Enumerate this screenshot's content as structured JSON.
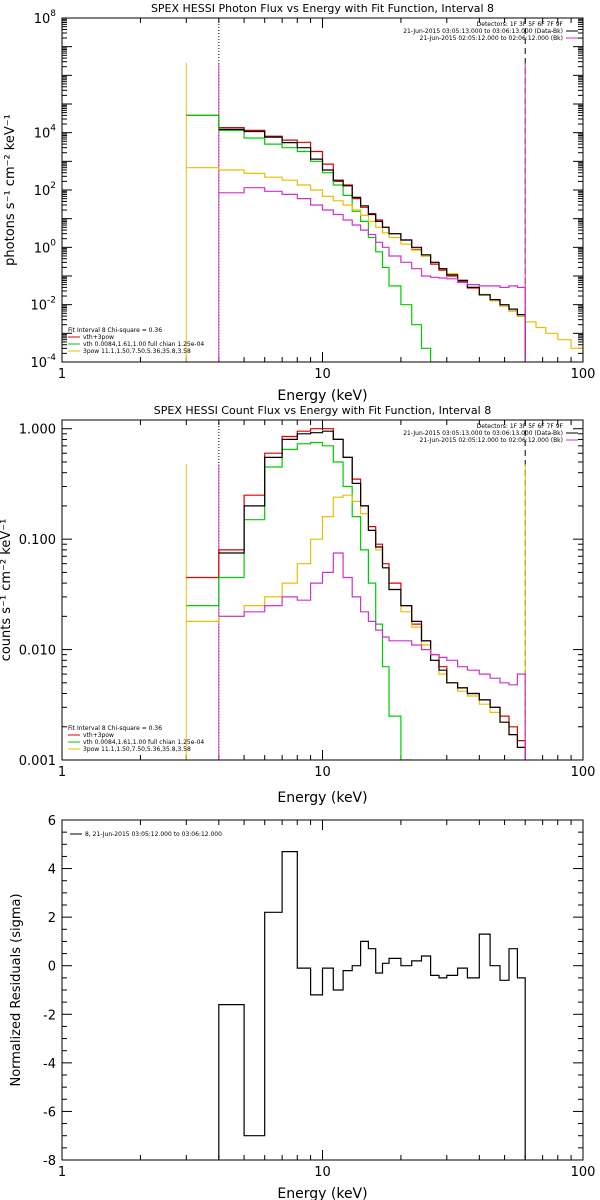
{
  "chart_data": [
    {
      "type": "line",
      "step": true,
      "title": "SPEX HESSI Photon Flux vs Energy with Fit Function, Interval 8",
      "xlabel": "Energy (keV)",
      "ylabel": "photons s⁻¹ cm⁻² keV⁻¹",
      "xscale": "log",
      "yscale": "log",
      "xlim": [
        1,
        100
      ],
      "ylim": [
        0.0001,
        100000000
      ],
      "xticks": [
        {
          "v": 1,
          "label": "1"
        },
        {
          "v": 10,
          "label": "10"
        },
        {
          "v": 100,
          "label": "100"
        }
      ],
      "yticks": [
        {
          "v": 0.0001,
          "base": "10",
          "exp": "-4"
        },
        {
          "v": 0.01,
          "base": "10",
          "exp": "-2"
        },
        {
          "v": 1,
          "base": "10",
          "exp": "0"
        },
        {
          "v": 100,
          "base": "10",
          "exp": "2"
        },
        {
          "v": 10000,
          "base": "10",
          "exp": "4"
        },
        {
          "v": 100000000,
          "base": "10",
          "exp": "8"
        }
      ],
      "yminor": true,
      "vlines": [
        {
          "x": 4.0,
          "style": "dotted",
          "color": "#000000"
        },
        {
          "x": 60.0,
          "style": "dashed",
          "color": "#000000"
        }
      ],
      "top_legend": [
        {
          "text": "Detectors: 1F 3F 5F 6F 7F 9F",
          "color": "",
          "swatch": false
        },
        {
          "text": "21-Jun-2015 03:05:13.000 to 03:06:13.000 (Data-Bk)",
          "color": "#000000",
          "swatch": true
        },
        {
          "text": "21-Jun-2015 02:05:12.000 to 02:06:12.000 (Bk)",
          "color": "#cc33cc",
          "swatch": true
        }
      ],
      "fit_legend": [
        {
          "text": "Fit Interval 8   Chi-square = 0.36",
          "color": "",
          "swatch": false
        },
        {
          "text": "vth+3pow",
          "color": "#dd0000",
          "swatch": true
        },
        {
          "text": "vth 0.0084,1.61,1.00  full chian 1.25e-04",
          "color": "#00cc00",
          "swatch": true
        },
        {
          "text": "3pow 11.1,1.50,7.50,5.36,35.8,3.58",
          "color": "#e8c000",
          "swatch": true
        }
      ],
      "edges": [
        3.0,
        4.0,
        5.0,
        6.0,
        7.0,
        8.0,
        9.0,
        10.0,
        11.0,
        12.0,
        13.0,
        14.0,
        15.0,
        16.0,
        17.0,
        18.0,
        20.0,
        22.0,
        24.0,
        26.0,
        28.0,
        30.0,
        33.0,
        36.0,
        40.0,
        44.0,
        48.0,
        52.0,
        56.0,
        60.0,
        66.0,
        72.0,
        80.0,
        90.0,
        100.0
      ],
      "series": [
        {
          "name": "vth+3pow",
          "color": "#dd0000",
          "values": [
            40000,
            15000,
            12000,
            7500,
            5500,
            4600,
            2200,
            800,
            200,
            150,
            50,
            25,
            15,
            9,
            5,
            3,
            1.8,
            0.85,
            0.5,
            0.26,
            0.16,
            0.1,
            0.065,
            0.038,
            0.022,
            0.014,
            0.009,
            0.006,
            0.004,
            null,
            null,
            null,
            null,
            null
          ]
        },
        {
          "name": "vth 0.0084,1.61,1.00  full chian 1.25e-04",
          "color": "#00cc00",
          "values": [
            40000,
            12000,
            6500,
            4000,
            3000,
            2200,
            1000,
            400,
            150,
            65,
            18,
            8,
            2.2,
            0.7,
            0.2,
            0.045,
            0.01,
            0.002,
            0.0003,
            0.0001,
            null,
            null,
            null,
            null,
            null,
            null,
            null,
            null,
            null,
            null,
            null,
            null,
            null,
            null
          ]
        },
        {
          "name": "3pow 11.1,1.50,7.50,5.36,35.8,3.58",
          "color": "#e8c000",
          "values": [
            600,
            500,
            380,
            280,
            220,
            150,
            100,
            60,
            42,
            30,
            20,
            13,
            8,
            5,
            3.2,
            2.2,
            1.3,
            0.8,
            0.5,
            0.3,
            0.18,
            0.12,
            0.07,
            0.04,
            0.023,
            0.014,
            0.009,
            0.006,
            0.004,
            0.0025,
            0.0016,
            0.001,
            0.0006,
            0.0003
          ]
        },
        {
          "name": "Data-Bk",
          "color": "#000000",
          "values": [
            null,
            13000,
            11000,
            7000,
            4500,
            3000,
            1200,
            500,
            220,
            140,
            55,
            28,
            14,
            8,
            5,
            3,
            1.8,
            1.0,
            0.55,
            0.3,
            0.18,
            0.11,
            0.07,
            0.04,
            0.022,
            0.015,
            0.01,
            0.007,
            0.0045,
            null,
            null,
            null,
            null,
            null
          ]
        },
        {
          "name": "Bk",
          "color": "#cc33cc",
          "values": [
            null,
            80,
            120,
            90,
            70,
            50,
            30,
            20,
            14,
            9,
            6,
            4,
            2.8,
            1.5,
            1.0,
            0.5,
            0.3,
            0.18,
            0.1,
            0.09,
            0.085,
            0.08,
            0.06,
            0.05,
            0.045,
            0.045,
            0.04,
            0.045,
            0.04,
            null,
            null,
            null,
            null,
            null
          ]
        }
      ],
      "edge_lines": [
        {
          "x": 3.0,
          "color": "#e8c000"
        },
        {
          "x": 4.0,
          "color": "#cc33cc"
        },
        {
          "x": 60.0,
          "color": "#cc33cc"
        }
      ]
    },
    {
      "type": "line",
      "step": true,
      "title": "SPEX HESSI Count Flux vs Energy with Fit Function, Interval 8",
      "xlabel": "Energy (keV)",
      "ylabel": "counts s⁻¹ cm⁻² keV⁻¹",
      "xscale": "log",
      "yscale": "log",
      "xlim": [
        1,
        100
      ],
      "ylim": [
        0.001,
        1.2
      ],
      "xticks": [
        {
          "v": 1,
          "label": "1"
        },
        {
          "v": 10,
          "label": "10"
        },
        {
          "v": 100,
          "label": "100"
        }
      ],
      "yticks": [
        {
          "v": 0.001,
          "label": "0.001"
        },
        {
          "v": 0.01,
          "label": "0.010"
        },
        {
          "v": 0.1,
          "label": "0.100"
        },
        {
          "v": 1,
          "label": "1.000"
        }
      ],
      "yminor": true,
      "vlines": [
        {
          "x": 4.0,
          "style": "dotted",
          "color": "#000000"
        },
        {
          "x": 60.0,
          "style": "dashed",
          "color": "#000000"
        }
      ],
      "top_legend": [
        {
          "text": "Detectors: 1F 3F 5F 6F 7F 9F",
          "color": "",
          "swatch": false
        },
        {
          "text": "21-Jun-2015 03:05:13.000 to 03:06:13.000 (Data-Bk)",
          "color": "#000000",
          "swatch": true
        },
        {
          "text": "21-Jun-2015 02:05:12.000 to 02:06:12.000 (Bk)",
          "color": "#cc33cc",
          "swatch": true
        }
      ],
      "fit_legend": [
        {
          "text": "Fit Interval 8   Chi-square = 0.36",
          "color": "",
          "swatch": false
        },
        {
          "text": "vth+3pow",
          "color": "#dd0000",
          "swatch": true
        },
        {
          "text": "vth 0.0084,1.61,1.00  full chian 1.25e-04",
          "color": "#00cc00",
          "swatch": true
        },
        {
          "text": "3pow 11.1,1.50,7.50,5.36,35.8,3.58",
          "color": "#e8c000",
          "swatch": true
        }
      ],
      "edges": [
        3.0,
        4.0,
        5.0,
        6.0,
        7.0,
        8.0,
        9.0,
        10.0,
        11.0,
        12.0,
        13.0,
        14.0,
        15.0,
        16.0,
        17.0,
        18.0,
        20.0,
        22.0,
        24.0,
        26.0,
        28.0,
        30.0,
        33.0,
        36.0,
        40.0,
        44.0,
        48.0,
        52.0,
        56.0,
        60.0
      ],
      "series": [
        {
          "name": "vth+3pow",
          "color": "#dd0000",
          "values": [
            0.045,
            0.08,
            0.25,
            0.6,
            0.85,
            0.95,
            1.0,
            1.0,
            0.8,
            0.55,
            0.35,
            0.2,
            0.13,
            0.09,
            0.06,
            0.04,
            0.025,
            0.017,
            0.012,
            0.009,
            0.007,
            0.005,
            0.0045,
            0.004,
            0.0035,
            0.003,
            0.0025,
            0.002,
            0.0015
          ]
        },
        {
          "name": "vth 0.0084,1.61,1.00  full chian 1.25e-04",
          "color": "#00cc00",
          "values": [
            0.025,
            0.045,
            0.15,
            0.45,
            0.65,
            0.73,
            0.75,
            0.7,
            0.5,
            0.3,
            0.16,
            0.08,
            0.04,
            0.017,
            0.007,
            0.0025,
            0.0008,
            null,
            null,
            null,
            null,
            null,
            null,
            null,
            null,
            null,
            null,
            null,
            null
          ]
        },
        {
          "name": "3pow 11.1,1.50,7.50,5.36,35.8,3.58",
          "color": "#e8c000",
          "values": [
            0.018,
            0.02,
            0.025,
            0.03,
            0.04,
            0.06,
            0.1,
            0.16,
            0.24,
            0.25,
            0.22,
            0.17,
            0.12,
            0.08,
            0.055,
            0.035,
            0.022,
            0.016,
            0.011,
            0.008,
            0.006,
            0.005,
            0.0042,
            0.0038,
            0.0032,
            0.0027,
            0.0022,
            0.0017,
            0.0013
          ]
        },
        {
          "name": "Data-Bk",
          "color": "#000000",
          "values": [
            null,
            0.075,
            0.2,
            0.55,
            0.8,
            0.9,
            0.92,
            0.95,
            0.8,
            0.55,
            0.32,
            0.2,
            0.12,
            0.085,
            0.055,
            0.035,
            0.025,
            0.018,
            0.012,
            0.008,
            0.0065,
            0.005,
            0.0045,
            0.004,
            0.0035,
            0.003,
            0.0022,
            0.0017,
            0.0013
          ]
        },
        {
          "name": "Bk",
          "color": "#cc33cc",
          "values": [
            null,
            0.02,
            0.022,
            0.025,
            0.03,
            0.028,
            0.04,
            0.05,
            0.075,
            0.045,
            0.03,
            0.022,
            0.018,
            0.015,
            0.013,
            0.012,
            0.012,
            0.011,
            0.01,
            0.009,
            0.0085,
            0.008,
            0.007,
            0.0065,
            0.006,
            0.0055,
            0.005,
            0.0048,
            0.006
          ]
        }
      ],
      "edge_lines": [
        {
          "x": 3.0,
          "color": "#e8c000"
        },
        {
          "x": 4.0,
          "color": "#cc33cc"
        },
        {
          "x": 60.0,
          "color": "#e8c000"
        }
      ]
    },
    {
      "type": "line",
      "step": true,
      "title": "",
      "xlabel": "Energy (keV)",
      "ylabel": "Normalized Residuals (sigma)",
      "xscale": "log",
      "yscale": "linear",
      "xlim": [
        1,
        100
      ],
      "ylim": [
        -8,
        6
      ],
      "xticks": [
        {
          "v": 1,
          "label": "1"
        },
        {
          "v": 10,
          "label": "10"
        },
        {
          "v": 100,
          "label": "100"
        }
      ],
      "yticks": [
        {
          "v": -8,
          "label": "-8"
        },
        {
          "v": -6,
          "label": "-6"
        },
        {
          "v": -4,
          "label": "-4"
        },
        {
          "v": -2,
          "label": "-2"
        },
        {
          "v": 0,
          "label": "0"
        },
        {
          "v": 2,
          "label": "2"
        },
        {
          "v": 4,
          "label": "4"
        },
        {
          "v": 6,
          "label": "6"
        }
      ],
      "yminor": false,
      "vlines": [],
      "top_legend": [],
      "inset_legend": [
        {
          "text": "8, 21-Jun-2015 03:05:12.000 to 03:06:12.000",
          "color": "#000000",
          "swatch": true
        }
      ],
      "fit_legend": [],
      "edges": [
        4.0,
        5.0,
        6.0,
        7.0,
        8.0,
        9.0,
        10.0,
        11.0,
        12.0,
        13.0,
        14.0,
        15.0,
        16.0,
        17.0,
        18.0,
        20.0,
        22.0,
        24.0,
        26.0,
        28.0,
        30.0,
        33.0,
        36.0,
        40.0,
        44.0,
        48.0,
        52.0,
        56.0,
        60.0
      ],
      "series": [
        {
          "name": "8, 21-Jun-2015 03:05:12.000 to 03:06:12.000",
          "color": "#000000",
          "values": [
            -1.6,
            -7.0,
            2.2,
            4.7,
            -0.1,
            -1.2,
            -0.1,
            -1.0,
            -0.2,
            0.0,
            1.0,
            0.7,
            -0.3,
            0.1,
            0.3,
            0.0,
            0.2,
            0.4,
            -0.4,
            -0.5,
            -0.4,
            -0.1,
            -0.5,
            1.3,
            0.0,
            -0.6,
            0.7,
            -0.5
          ]
        }
      ],
      "edge_lines": []
    }
  ]
}
